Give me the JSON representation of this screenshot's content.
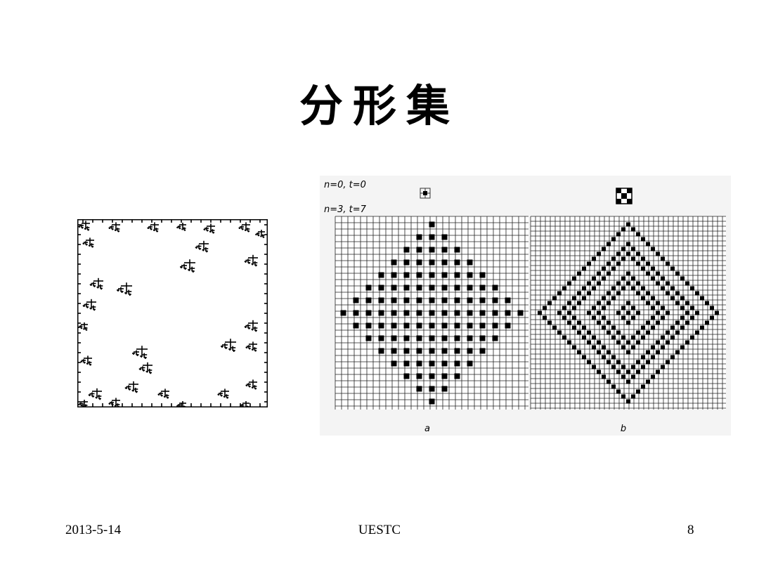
{
  "slide": {
    "title": "分形集",
    "footer": {
      "date": "2013-5-14",
      "org": "UESTC",
      "page": "8"
    }
  },
  "figure_right": {
    "labels": {
      "n0": "n=0, t=0",
      "n3": "n=3, t=7",
      "panel_a": "a",
      "panel_b": "b"
    }
  }
}
